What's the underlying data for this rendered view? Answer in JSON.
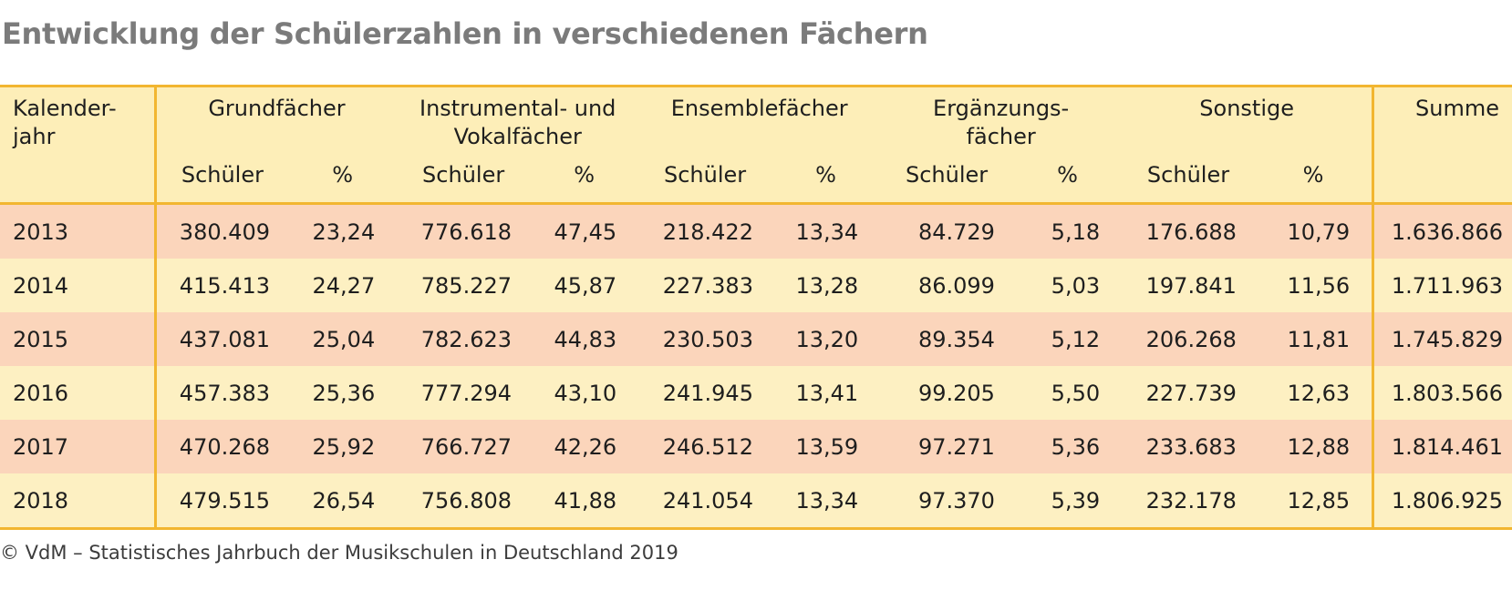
{
  "title": "Entwicklung der Schülerzahlen in verschiedenen Fächern",
  "header": {
    "year_line1": "Kalender-",
    "year_line2": "jahr",
    "groups": [
      {
        "line1": "Grundfächer",
        "line2": ""
      },
      {
        "line1": "Instrumental- und",
        "line2": "Vokalfächer"
      },
      {
        "line1": "Ensemblefächer",
        "line2": ""
      },
      {
        "line1": "Ergänzungs-",
        "line2": "fächer"
      },
      {
        "line1": "Sonstige",
        "line2": ""
      }
    ],
    "sum": "Summe",
    "sub_schueler": "Schüler",
    "sub_pct": "%"
  },
  "chart_data": {
    "type": "table",
    "title": "Entwicklung der Schülerzahlen in verschiedenen Fächern",
    "columns": [
      "Kalenderjahr",
      "Grundfächer Schüler",
      "Grundfächer %",
      "Instrumental- und Vokalfächer Schüler",
      "Instrumental- und Vokalfächer %",
      "Ensemblefächer Schüler",
      "Ensemblefächer %",
      "Ergänzungsfächer Schüler",
      "Ergänzungsfächer %",
      "Sonstige Schüler",
      "Sonstige %",
      "Summe"
    ],
    "rows": [
      [
        "2013",
        "380.409",
        "23,24",
        "776.618",
        "47,45",
        "218.422",
        "13,34",
        "84.729",
        "5,18",
        "176.688",
        "10,79",
        "1.636.866"
      ],
      [
        "2014",
        "415.413",
        "24,27",
        "785.227",
        "45,87",
        "227.383",
        "13,28",
        "86.099",
        "5,03",
        "197.841",
        "11,56",
        "1.711.963"
      ],
      [
        "2015",
        "437.081",
        "25,04",
        "782.623",
        "44,83",
        "230.503",
        "13,20",
        "89.354",
        "5,12",
        "206.268",
        "11,81",
        "1.745.829"
      ],
      [
        "2016",
        "457.383",
        "25,36",
        "777.294",
        "43,10",
        "241.945",
        "13,41",
        "99.205",
        "5,50",
        "227.739",
        "12,63",
        "1.803.566"
      ],
      [
        "2017",
        "470.268",
        "25,92",
        "766.727",
        "42,26",
        "246.512",
        "13,59",
        "97.271",
        "5,36",
        "233.683",
        "12,88",
        "1.814.461"
      ],
      [
        "2018",
        "479.515",
        "26,54",
        "756.808",
        "41,88",
        "241.054",
        "13,34",
        "97.370",
        "5,39",
        "232.178",
        "12,85",
        "1.806.925"
      ]
    ]
  },
  "colors": {
    "header_bg": "#fdeeb8",
    "row_odd": "#fbd5bb",
    "row_even": "#fdf0c2",
    "divider": "#f2b630",
    "title": "#7b7b7b"
  },
  "footer": "© VdM – Statistisches Jahrbuch der Musikschulen in Deutschland 2019"
}
